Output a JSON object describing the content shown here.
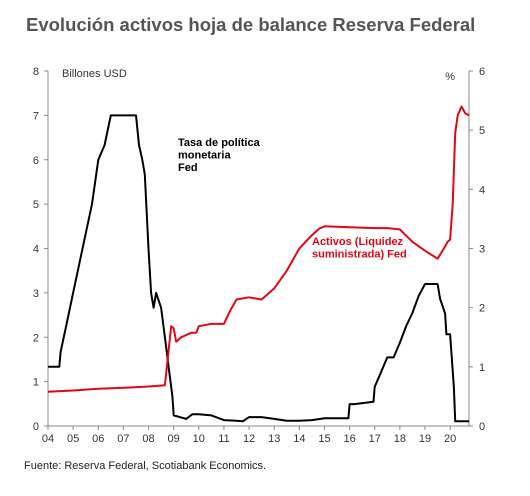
{
  "title": "Evolución activos hoja de balance Reserva Federal",
  "source": "Fuente: Reserva Federal, Scotiabank Economics.",
  "chart_data": {
    "type": "line",
    "left_axis": {
      "label": "Billones USD",
      "ticks": [
        0,
        1,
        2,
        3,
        4,
        5,
        6,
        7,
        8
      ],
      "range": [
        0,
        8
      ]
    },
    "right_axis": {
      "label": "%",
      "ticks": [
        0,
        1,
        2,
        3,
        4,
        5,
        6
      ],
      "range": [
        0,
        6
      ]
    },
    "x_axis": {
      "ticks": [
        "04",
        "05",
        "06",
        "07",
        "08",
        "09",
        "10",
        "11",
        "12",
        "13",
        "14",
        "15",
        "16",
        "17",
        "18",
        "19",
        "20"
      ],
      "range": [
        2004,
        2020.75
      ]
    },
    "grid": false,
    "series": [
      {
        "name": "Tasa de política monetaria Fed",
        "label_lines": [
          "Tasa de política",
          "monetaria",
          "Fed"
        ],
        "axis": "right",
        "color": "#000000",
        "x": [
          2004.0,
          2004.45,
          2004.5,
          2004.75,
          2005.0,
          2005.25,
          2005.5,
          2005.75,
          2006.0,
          2006.25,
          2006.5,
          2006.7,
          2007.0,
          2007.5,
          2007.62,
          2007.75,
          2007.85,
          2008.0,
          2008.1,
          2008.2,
          2008.3,
          2008.5,
          2008.65,
          2008.8,
          2008.95,
          2009.0,
          2009.5,
          2009.75,
          2010.0,
          2010.5,
          2011.0,
          2011.5,
          2011.75,
          2012.0,
          2012.5,
          2013.0,
          2013.5,
          2014.0,
          2014.5,
          2015.0,
          2015.5,
          2015.95,
          2016.0,
          2016.2,
          2016.95,
          2017.0,
          2017.25,
          2017.5,
          2017.75,
          2018.0,
          2018.25,
          2018.5,
          2018.75,
          2019.0,
          2019.5,
          2019.6,
          2019.8,
          2019.85,
          2020.0,
          2020.15,
          2020.2,
          2020.75
        ],
        "y": [
          1.0,
          1.0,
          1.25,
          1.75,
          2.25,
          2.75,
          3.25,
          3.75,
          4.5,
          4.75,
          5.25,
          5.25,
          5.25,
          5.25,
          4.75,
          4.5,
          4.25,
          3.0,
          2.25,
          2.0,
          2.25,
          2.0,
          1.5,
          1.0,
          0.5,
          0.18,
          0.12,
          0.2,
          0.2,
          0.18,
          0.1,
          0.09,
          0.08,
          0.15,
          0.15,
          0.12,
          0.09,
          0.09,
          0.1,
          0.13,
          0.13,
          0.13,
          0.37,
          0.37,
          0.41,
          0.66,
          0.91,
          1.16,
          1.16,
          1.41,
          1.69,
          1.91,
          2.2,
          2.4,
          2.4,
          2.15,
          1.9,
          1.55,
          1.55,
          0.65,
          0.08,
          0.08
        ]
      },
      {
        "name": "Activos (Liquidez suministrada) Fed",
        "label_lines": [
          "Activos (Liquidez",
          "suministrada) Fed"
        ],
        "axis": "left",
        "color": "#e30613",
        "x": [
          2004.0,
          2005.0,
          2006.0,
          2007.0,
          2008.0,
          2008.65,
          2008.8,
          2008.9,
          2009.0,
          2009.1,
          2009.3,
          2009.5,
          2009.7,
          2009.9,
          2010.0,
          2010.5,
          2011.0,
          2011.25,
          2011.5,
          2012.0,
          2012.5,
          2013.0,
          2013.5,
          2014.0,
          2014.5,
          2014.8,
          2015.0,
          2016.0,
          2017.0,
          2017.5,
          2018.0,
          2018.5,
          2019.0,
          2019.5,
          2019.75,
          2019.9,
          2020.0,
          2020.1,
          2020.2,
          2020.3,
          2020.45,
          2020.6,
          2020.75
        ],
        "y": [
          0.77,
          0.8,
          0.84,
          0.86,
          0.89,
          0.92,
          1.7,
          2.25,
          2.2,
          1.9,
          2.0,
          2.05,
          2.1,
          2.1,
          2.25,
          2.3,
          2.3,
          2.6,
          2.85,
          2.9,
          2.85,
          3.1,
          3.5,
          4.0,
          4.3,
          4.45,
          4.5,
          4.48,
          4.46,
          4.46,
          4.43,
          4.15,
          3.95,
          3.77,
          4.0,
          4.15,
          4.2,
          5.0,
          6.6,
          7.0,
          7.2,
          7.05,
          7.0
        ]
      }
    ]
  }
}
